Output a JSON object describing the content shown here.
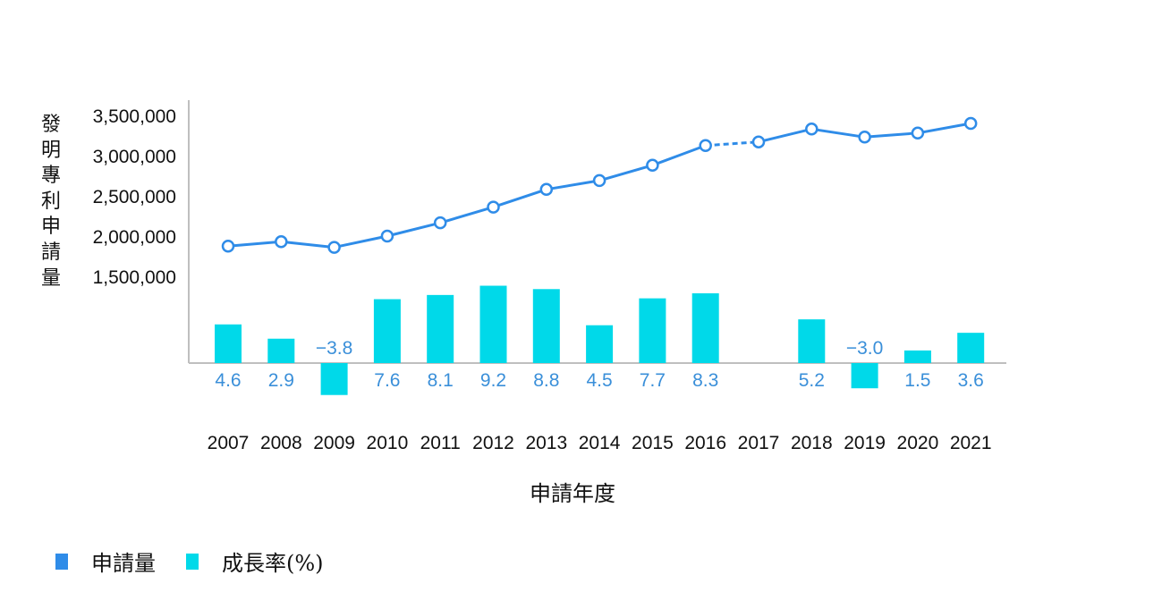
{
  "chart_data": {
    "type": "bar+line",
    "categories": [
      "2007",
      "2008",
      "2009",
      "2010",
      "2011",
      "2012",
      "2013",
      "2014",
      "2015",
      "2016",
      "2017",
      "2018",
      "2019",
      "2020",
      "2021"
    ],
    "series": [
      {
        "name": "申請量",
        "type": "line",
        "values": [
          1875000,
          1930000,
          1860000,
          2000000,
          2165000,
          2360000,
          2580000,
          2690000,
          2880000,
          3125000,
          3170000,
          3330000,
          3230000,
          3280000,
          3400000
        ],
        "dashed_between": [
          "2016",
          "2017"
        ]
      },
      {
        "name": "成長率(%)",
        "type": "bar",
        "values": [
          4.6,
          2.9,
          -3.8,
          7.6,
          8.1,
          9.2,
          8.8,
          4.5,
          7.7,
          8.3,
          null,
          5.2,
          -3.0,
          1.5,
          3.6
        ],
        "labels": [
          "4.6",
          "2.9",
          "−3.8",
          "7.6",
          "8.1",
          "9.2",
          "8.8",
          "4.5",
          "7.7",
          "8.3",
          "",
          "5.2",
          "−3.0",
          "1.5",
          "3.6"
        ]
      }
    ],
    "y_ticks": [
      "3,500,000",
      "3,000,000",
      "2,500,000",
      "2,000,000",
      "1,500,000"
    ],
    "y_tick_values": [
      3500000,
      3000000,
      2500000,
      2000000,
      1500000
    ],
    "ylim": [
      1500000,
      3500000
    ],
    "ylabel": "發明專利申請量",
    "xlabel": "申請年度",
    "colors": {
      "line": "#2f8ce8",
      "bar": "#00d9e9",
      "axis": "#bfbfbf",
      "bar_label": "#3a8fd9",
      "text": "#111111"
    },
    "legend": {
      "placement": "bottom-left"
    }
  }
}
